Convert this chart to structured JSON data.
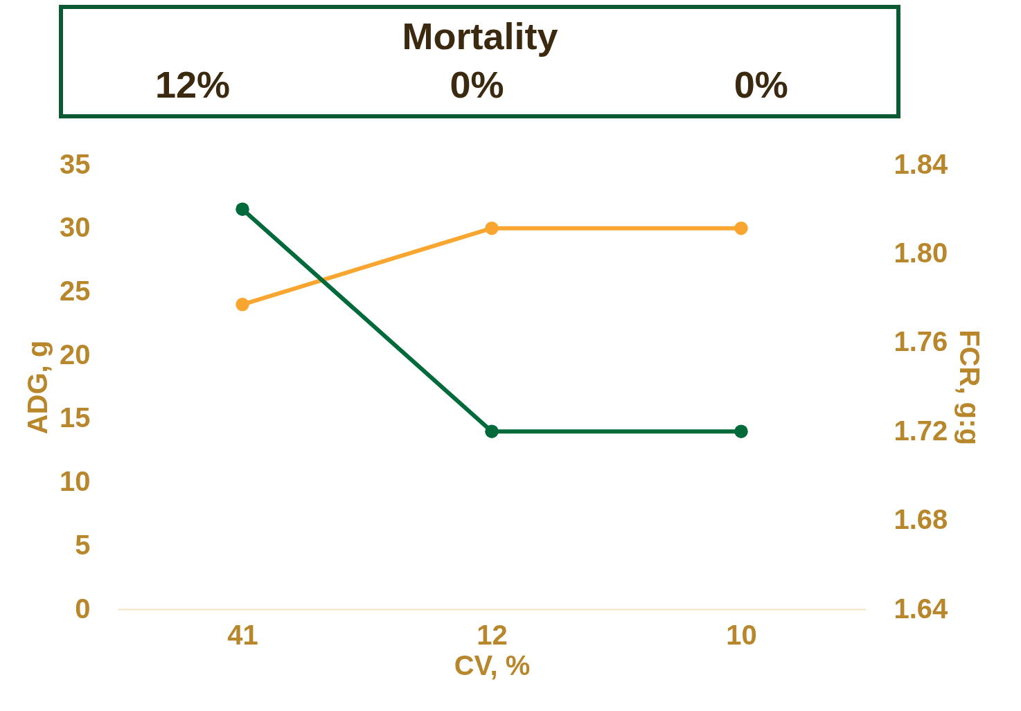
{
  "chart_data": {
    "type": "line",
    "categories": [
      "41",
      "12",
      "10"
    ],
    "xlabel": "CV, %",
    "ylabel": "ADG, g",
    "y2label": "FCR, g:g",
    "series": [
      {
        "color": "#f9a630",
        "values": [
          24,
          30,
          30
        ]
      },
      {
        "color": "#006a3b",
        "values": [
          1.82,
          1.72,
          1.72
        ],
        "axis": "y2"
      }
    ],
    "ylim": [
      0,
      35
    ],
    "yticks": [
      0,
      5,
      10,
      15,
      20,
      25,
      30,
      35
    ],
    "y2lim": [
      1.64,
      1.84
    ],
    "y2ticks": [
      {
        "value": 1.64,
        "label": "1.64"
      },
      {
        "value": 1.68,
        "label": "1.68"
      },
      {
        "value": 1.72,
        "label": "1.72"
      },
      {
        "value": 1.76,
        "label": "1.76"
      },
      {
        "value": 1.8,
        "label": "1.80"
      },
      {
        "value": 1.84,
        "label": "1.84"
      }
    ],
    "annotations": [
      "Mortality",
      "12%",
      "0%",
      "0%"
    ],
    "marker": "circle",
    "line_style": "solid",
    "grid": false
  }
}
